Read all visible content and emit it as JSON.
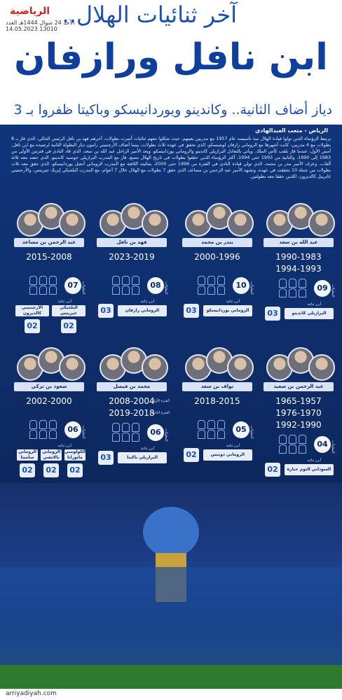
{
  "header": {
    "logo": "الرياضية",
    "date": "الأحد 24 شوال 1444هـ العدد 13010 14.05.2023",
    "kicker": "آخر ثنائيات الهلال..",
    "title": "ابن نافل ورازفان",
    "subtitle": "دياز أضاف الثانية.. وكاندينو ويوردانيسكو وباكيتا ظفروا بـ 3"
  },
  "article": {
    "byline": "الرياض - متعب العبدالهادي",
    "body": "يرتبط الرؤساء الذين تولوا قيادة الهلال منذ تأسيسه عام 1957 مع مدربين بعينهم، حيث شكلوا معهم ثنائيات أثمرت بطولات، آخرهم فهد بن نافل الرئيس الحالي، الذي فاز بـ 8 بطولات مع 4 مدربين، كانت أشهرها مع الروماني رازفان لوشيسكو، الذي تحقق في عهده ثلاث بطولات، بينما أضاف الأرجنتيني رامون دياز البطولة الثانية لرصيده مع ابن نافل، أمس الأول، عندما فاز بلقب كأس الملك. ويأتي بالتعادل البرازيلي كانديتو والروماني يوردانيسكو، وبعد الأمير الراحل عبد الله بن سعد، الذي قاد النادي في فترتين الأولى من 1983 إلى 1990، والثانية من 1993 حتى 1994، أكثر الرؤساء الذين حققوا بطولات في تاريخ الهلال بتسع، فاز مع المدرب البرازيلي جوسيه كانديتو، الذي حصد معه ثلاثة ألقاب. وعرف الأمير بندر بن محمد، الذي تولى قيادة النادي في الفترة من 1996 حتى 2000، بثنائيته اللافتة مع المدرب الروماني أنجيل يوردانيسكو، الذي حقق معه ثلاث بطولات من جملة 10 تحققت في عهده، وتشهد الأمير عبد الرحمن بن مساعد، الذي حقق 7 بطولات مع الهلال خلال 7 أعوام، مع المدرب البلجيكي إيريك جيريتس، والأرجنتيني غابرييل كالديرون، اللذين حققا معه بطولتين."
  },
  "labels": {
    "titles": "البطولات",
    "top_duo": "أبرز ثنائية"
  },
  "presidents": [
    {
      "name": "عبد الله بن سعد",
      "periods": [
        "1990-1983",
        "1994-1993"
      ],
      "titles": "09",
      "coaches": [
        {
          "name": "البرازيلي كانديتو",
          "titles": "03"
        }
      ]
    },
    {
      "name": "بندر بن محمد",
      "periods": [
        "2000-1996"
      ],
      "titles": "10",
      "coaches": [
        {
          "name": "الروماني يوردانيسكو",
          "titles": "03"
        }
      ]
    },
    {
      "name": "فهد بن نافل",
      "periods": [
        "2023-2019"
      ],
      "titles": "08",
      "coaches": [
        {
          "name": "الروماني رازفان",
          "titles": "03"
        }
      ]
    },
    {
      "name": "عبد الرحمن بن مساعد",
      "periods": [
        "2015-2008"
      ],
      "titles": "07",
      "coaches": [
        {
          "name": "البلجيكي جيريتس",
          "titles": "02"
        },
        {
          "name": "الأرجنتيني كالديرون",
          "titles": "02"
        }
      ]
    },
    {
      "name": "عبد الرحمن بن سعيد",
      "periods": [
        "1965-1957",
        "1976-1970",
        "1992-1990"
      ],
      "titles": "04",
      "coaches": [
        {
          "name": "السوداني التوم جبارة",
          "titles": "02"
        }
      ]
    },
    {
      "name": "نواف بن سعد",
      "periods": [
        "2018-2015"
      ],
      "titles": "05",
      "coaches": [
        {
          "name": "الروماني دونيس",
          "titles": "02"
        }
      ]
    },
    {
      "name": "محمد بن فيصل",
      "periods": [
        "2008-2004",
        "2019-2018"
      ],
      "period_labels": [
        "الفترة الأولى",
        "الفترة الثانية"
      ],
      "titles": "06",
      "coaches": [
        {
          "name": "البرازيلي باكيتا",
          "titles": "03"
        }
      ]
    },
    {
      "name": "سعود بن تركي",
      "periods": [
        "2002-2000"
      ],
      "titles": "06",
      "coaches": [
        {
          "name": "الكولومبي ماتورانا",
          "titles": "02"
        },
        {
          "name": "الروماني بالاتشي",
          "titles": "02"
        },
        {
          "name": "الروماني ساميتا",
          "titles": "02"
        }
      ]
    }
  ],
  "footer": {
    "site": "arriyadiyah.com"
  }
}
